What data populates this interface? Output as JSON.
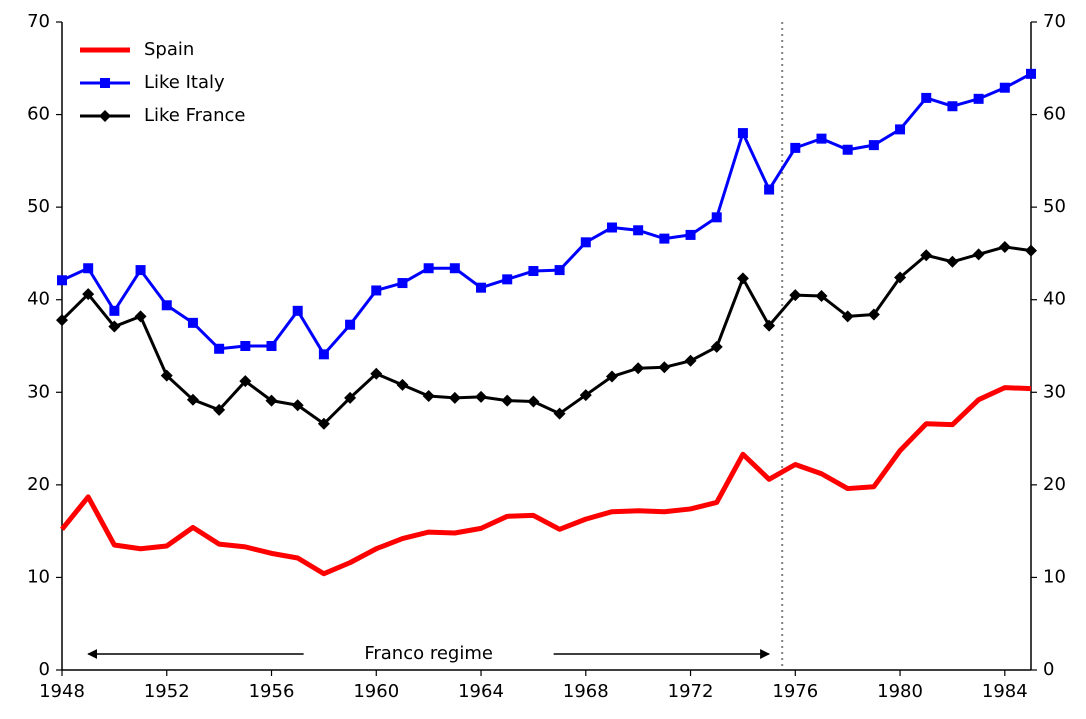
{
  "chart_data": {
    "type": "line",
    "x": [
      1948,
      1949,
      1950,
      1951,
      1952,
      1953,
      1954,
      1955,
      1956,
      1957,
      1958,
      1959,
      1960,
      1961,
      1962,
      1963,
      1964,
      1965,
      1966,
      1967,
      1968,
      1969,
      1970,
      1971,
      1972,
      1973,
      1974,
      1975,
      1976,
      1977,
      1978,
      1979,
      1980,
      1981,
      1982,
      1983,
      1984,
      1985
    ],
    "series": [
      {
        "name": "Spain",
        "color": "#ff0000",
        "marker": "none",
        "values": [
          15.2,
          18.7,
          13.5,
          13.1,
          13.4,
          15.4,
          13.6,
          13.3,
          12.6,
          12.1,
          10.4,
          11.6,
          13.1,
          14.2,
          14.9,
          14.8,
          15.3,
          16.6,
          16.7,
          15.2,
          16.3,
          17.1,
          17.2,
          17.1,
          17.4,
          18.1,
          23.3,
          20.6,
          22.2,
          21.2,
          19.6,
          19.8,
          23.7,
          26.6,
          26.5,
          29.2,
          30.5,
          30.4
        ]
      },
      {
        "name": "Like Italy",
        "color": "#0000ff",
        "marker": "square",
        "values": [
          42.1,
          43.4,
          38.8,
          43.2,
          39.4,
          37.5,
          34.7,
          35.0,
          35.0,
          38.8,
          34.1,
          37.3,
          41.0,
          41.8,
          43.4,
          43.4,
          41.3,
          42.2,
          43.1,
          43.2,
          46.2,
          47.8,
          47.5,
          46.6,
          47.0,
          48.9,
          58.0,
          51.9,
          56.4,
          57.4,
          56.2,
          56.7,
          58.4,
          61.8,
          60.9,
          61.7,
          62.9,
          64.4
        ]
      },
      {
        "name": "Like France",
        "color": "#000000",
        "marker": "diamond",
        "values": [
          37.8,
          40.6,
          37.1,
          38.2,
          31.8,
          29.2,
          28.1,
          31.2,
          29.1,
          28.6,
          26.6,
          29.4,
          32.0,
          30.8,
          29.6,
          29.4,
          29.5,
          29.1,
          29.0,
          27.7,
          29.7,
          31.7,
          32.6,
          32.7,
          33.4,
          34.9,
          42.3,
          37.2,
          40.5,
          40.4,
          38.2,
          38.4,
          42.4,
          44.8,
          44.1,
          44.9,
          45.7,
          45.3
        ]
      }
    ],
    "xlim": [
      1948,
      1985
    ],
    "xticks": [
      1948,
      1952,
      1956,
      1960,
      1964,
      1968,
      1972,
      1976,
      1980,
      1984
    ],
    "ylim": [
      0,
      70
    ],
    "yticks": [
      0,
      10,
      20,
      30,
      40,
      50,
      60,
      70
    ],
    "y2lim": [
      0,
      70
    ],
    "y2ticks": [
      0,
      10,
      20,
      30,
      40,
      50,
      60,
      70
    ],
    "vline": 1975.5,
    "annotation": {
      "text": "Franco regime",
      "from": 1975,
      "to": 1949
    },
    "legend": "upper left"
  }
}
